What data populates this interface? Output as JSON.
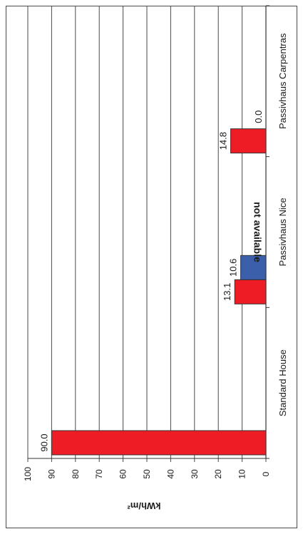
{
  "chart_data": {
    "type": "bar",
    "orientation": "rotated-90-clockwise",
    "categories": [
      "Standard House",
      "Passivhaus Nice",
      "Passivhaus Carpentras"
    ],
    "series": [
      {
        "color": "#ee1c25",
        "values": [
          90.0,
          13.1,
          14.8
        ]
      },
      {
        "color": "#3b5fab",
        "values": [
          null,
          10.6,
          0.0
        ]
      }
    ],
    "data_labels": [
      [
        "90.0",
        "13.1",
        "14.8"
      ],
      [
        "",
        "10.6",
        "0.0"
      ]
    ],
    "ylabel": "kWh/m²",
    "xlabel": "",
    "ylim": [
      0,
      100
    ],
    "yticks": [
      "0",
      "10",
      "20",
      "30",
      "40",
      "50",
      "60",
      "70",
      "80",
      "90",
      "100"
    ],
    "grid": true,
    "annotation": "not available"
  }
}
